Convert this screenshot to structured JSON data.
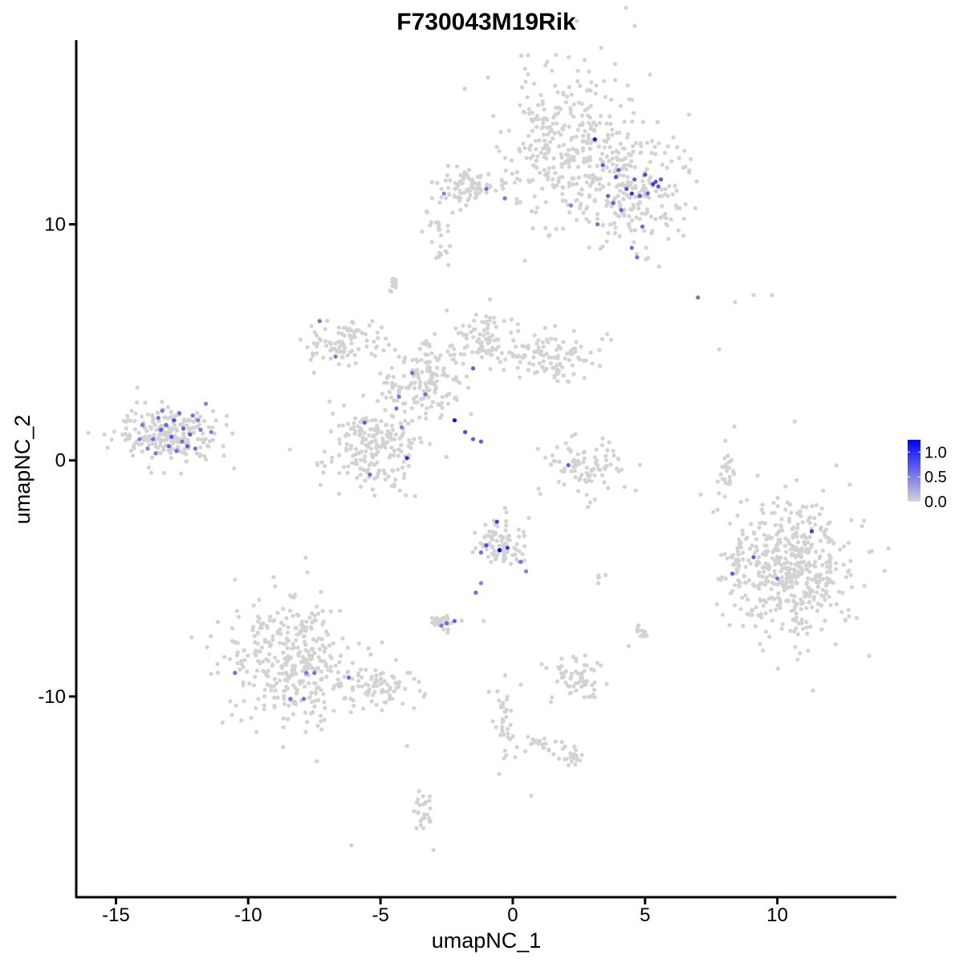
{
  "chart_data": {
    "type": "scatter",
    "title": "F730043M19Rik",
    "xlabel": "umapNC_1",
    "ylabel": "umapNC_2",
    "xlim": [
      -16.5,
      14.5
    ],
    "ylim": [
      -18.5,
      17.8
    ],
    "x_ticks": [
      -15,
      -10,
      -5,
      0,
      5,
      10
    ],
    "x_tick_labels": [
      "-15",
      "-10",
      "-5",
      "0",
      "5",
      "10"
    ],
    "y_ticks": [
      -10,
      0,
      10
    ],
    "y_tick_labels": [
      "-10",
      "0",
      "10"
    ],
    "grid": false,
    "legend_placement": "right",
    "colors": {
      "low": "#d3d3d3",
      "high": "#0000ff"
    },
    "color_scale": {
      "min": 0.0,
      "max": 1.25,
      "tick_values": [
        0.0,
        0.5,
        1.0
      ],
      "tick_labels": [
        "0.0",
        "0.5",
        "1.0"
      ]
    },
    "clusters": [
      {
        "name": "c1",
        "cx": 2.0,
        "cy": 13.3,
        "sx": 1.1,
        "sy": 1.7,
        "n": 320,
        "seed": 11
      },
      {
        "name": "c2",
        "cx": 4.6,
        "cy": 11.5,
        "sx": 1.0,
        "sy": 1.2,
        "n": 220,
        "seed": 12
      },
      {
        "name": "c3",
        "cx": -1.9,
        "cy": 11.6,
        "sx": 0.8,
        "sy": 0.4,
        "n": 90,
        "seed": 13
      },
      {
        "name": "c4",
        "cx": -13.0,
        "cy": 1.1,
        "sx": 1.0,
        "sy": 0.6,
        "n": 230,
        "seed": 14
      },
      {
        "name": "c5",
        "cx": -5.3,
        "cy": 0.6,
        "sx": 0.9,
        "sy": 0.9,
        "n": 200,
        "seed": 15
      },
      {
        "name": "c6",
        "cx": -6.3,
        "cy": 5.0,
        "sx": 0.8,
        "sy": 0.5,
        "n": 90,
        "seed": 16
      },
      {
        "name": "c7",
        "cx": -3.4,
        "cy": 3.3,
        "sx": 0.8,
        "sy": 1.0,
        "n": 160,
        "seed": 17
      },
      {
        "name": "c8",
        "cx": -1.1,
        "cy": 5.1,
        "sx": 0.6,
        "sy": 0.6,
        "n": 80,
        "seed": 18
      },
      {
        "name": "c9",
        "cx": 1.2,
        "cy": 4.4,
        "sx": 1.0,
        "sy": 0.5,
        "n": 110,
        "seed": 19
      },
      {
        "name": "c10",
        "cx": 2.8,
        "cy": -0.3,
        "sx": 0.8,
        "sy": 0.6,
        "n": 90,
        "seed": 20
      },
      {
        "name": "c11",
        "cx": 10.5,
        "cy": -4.6,
        "sx": 1.2,
        "sy": 1.5,
        "n": 500,
        "seed": 21
      },
      {
        "name": "c12",
        "cx": -8.4,
        "cy": -8.4,
        "sx": 1.2,
        "sy": 1.3,
        "n": 360,
        "seed": 22
      },
      {
        "name": "c13",
        "cx": -5.3,
        "cy": -9.6,
        "sx": 0.9,
        "sy": 0.5,
        "n": 80,
        "seed": 23
      },
      {
        "name": "c14",
        "cx": -0.5,
        "cy": -3.6,
        "sx": 0.5,
        "sy": 0.5,
        "n": 80,
        "seed": 24
      },
      {
        "name": "c15",
        "cx": 2.4,
        "cy": -9.3,
        "sx": 0.5,
        "sy": 0.5,
        "n": 60,
        "seed": 25
      },
      {
        "name": "c16",
        "cx": -2.6,
        "cy": -6.9,
        "sx": 0.3,
        "sy": 0.2,
        "n": 25,
        "seed": 26
      },
      {
        "name": "c17",
        "cx": -3.4,
        "cy": -14.9,
        "sx": 0.2,
        "sy": 0.5,
        "n": 25,
        "seed": 27
      },
      {
        "name": "c18",
        "cx": -4.5,
        "cy": 7.4,
        "sx": 0.15,
        "sy": 0.15,
        "n": 12,
        "seed": 28
      },
      {
        "name": "c19",
        "cx": -2.7,
        "cy": 8.8,
        "sx": 0.2,
        "sy": 0.3,
        "n": 10,
        "seed": 29
      },
      {
        "name": "c20",
        "cx": 8.1,
        "cy": -0.5,
        "sx": 0.2,
        "sy": 0.8,
        "n": 25,
        "seed": 30
      },
      {
        "name": "c21",
        "cx": 4.9,
        "cy": -7.4,
        "sx": 0.2,
        "sy": 0.2,
        "n": 15,
        "seed": 31
      },
      {
        "name": "c22",
        "cx": -0.3,
        "cy": -11.0,
        "sx": 0.2,
        "sy": 0.8,
        "n": 35,
        "seed": 32
      },
      {
        "name": "c23",
        "cx": 2.2,
        "cy": -12.6,
        "sx": 0.3,
        "sy": 0.2,
        "n": 20,
        "seed": 33
      },
      {
        "name": "c24",
        "cx": 1.1,
        "cy": -12.0,
        "sx": 0.6,
        "sy": 0.2,
        "n": 20,
        "seed": 34
      },
      {
        "name": "c25",
        "cx": 8.5,
        "cy": -4.3,
        "sx": 0.2,
        "sy": 0.5,
        "n": 20,
        "seed": 35
      },
      {
        "name": "c26",
        "cx": 3.2,
        "cy": -5.1,
        "sx": 0.15,
        "sy": 0.15,
        "n": 5,
        "seed": 36
      },
      {
        "name": "c27",
        "cx": -2.8,
        "cy": 10.0,
        "sx": 0.3,
        "sy": 0.3,
        "n": 15,
        "seed": 37
      }
    ],
    "isolated_points": [
      [
        -6.1,
        -16.3,
        0
      ],
      [
        -3.0,
        -16.5,
        0
      ],
      [
        0.7,
        -14.2,
        0
      ],
      [
        -4.0,
        -12.1,
        0
      ],
      [
        -1.1,
        -6.8,
        0
      ],
      [
        -0.9,
        -9.8,
        0
      ],
      [
        0.3,
        -9.5,
        0
      ],
      [
        9.1,
        7.0,
        0
      ],
      [
        9.8,
        7.0,
        0
      ],
      [
        8.4,
        6.7,
        0
      ],
      [
        7.8,
        4.7,
        0
      ]
    ],
    "expressing_points": [
      [
        -14.0,
        1.5,
        0.55
      ],
      [
        -13.6,
        0.9,
        0.6
      ],
      [
        -13.3,
        1.3,
        0.7
      ],
      [
        -13.0,
        0.6,
        0.65
      ],
      [
        -12.8,
        1.7,
        0.8
      ],
      [
        -12.5,
        0.8,
        0.6
      ],
      [
        -12.2,
        1.1,
        0.7
      ],
      [
        -11.8,
        1.3,
        0.55
      ],
      [
        -12.0,
        0.5,
        0.6
      ],
      [
        -13.8,
        0.5,
        0.5
      ],
      [
        -12.6,
        2.0,
        0.6
      ],
      [
        -11.6,
        2.4,
        0.5
      ],
      [
        -12.9,
        1.0,
        0.75
      ],
      [
        -13.4,
        1.8,
        0.6
      ],
      [
        -12.3,
        0.6,
        0.7
      ],
      [
        -11.9,
        1.7,
        0.5
      ],
      [
        -13.1,
        1.5,
        0.65
      ],
      [
        -12.7,
        0.4,
        0.6
      ],
      [
        -14.1,
        0.9,
        0.5
      ],
      [
        -13.5,
        0.3,
        0.55
      ],
      [
        -12.1,
        1.9,
        0.6
      ],
      [
        -12.45,
        1.35,
        0.7
      ],
      [
        -13.25,
        2.1,
        0.55
      ],
      [
        -11.4,
        1.2,
        0.5
      ],
      [
        3.4,
        12.5,
        0.7
      ],
      [
        3.9,
        12.0,
        0.8
      ],
      [
        4.3,
        11.5,
        0.75
      ],
      [
        4.6,
        11.9,
        0.7
      ],
      [
        5.0,
        12.1,
        0.85
      ],
      [
        5.3,
        11.7,
        0.9
      ],
      [
        5.5,
        11.6,
        0.75
      ],
      [
        4.8,
        11.2,
        0.7
      ],
      [
        4.1,
        10.6,
        0.65
      ],
      [
        3.6,
        11.2,
        0.7
      ],
      [
        3.1,
        13.6,
        1.1
      ],
      [
        4.5,
        11.3,
        0.95
      ],
      [
        5.1,
        11.3,
        0.7
      ],
      [
        4.9,
        9.9,
        0.6
      ],
      [
        3.2,
        10.0,
        0.55
      ],
      [
        4.5,
        9.0,
        0.6
      ],
      [
        5.4,
        11.8,
        0.8
      ],
      [
        4.0,
        12.3,
        0.7
      ],
      [
        3.8,
        10.9,
        0.65
      ],
      [
        4.7,
        8.6,
        0.6
      ],
      [
        5.6,
        11.9,
        0.7
      ],
      [
        2.2,
        10.8,
        0.5
      ],
      [
        -2.6,
        11.3,
        0.5
      ],
      [
        -1.0,
        11.5,
        0.6
      ],
      [
        -0.3,
        11.1,
        0.55
      ],
      [
        -2.2,
        1.7,
        1.2
      ],
      [
        -1.8,
        1.2,
        0.8
      ],
      [
        -1.5,
        0.9,
        0.7
      ],
      [
        -1.2,
        0.8,
        0.7
      ],
      [
        -5.6,
        1.6,
        0.7
      ],
      [
        -4.4,
        2.2,
        0.6
      ],
      [
        -4.3,
        2.7,
        0.55
      ],
      [
        -4.0,
        0.1,
        1.0
      ],
      [
        -5.4,
        -0.6,
        0.6
      ],
      [
        -4.2,
        1.4,
        0.5
      ],
      [
        -3.3,
        2.8,
        0.6
      ],
      [
        -7.3,
        5.9,
        0.6
      ],
      [
        -6.7,
        4.4,
        0.55
      ],
      [
        -3.8,
        3.7,
        0.6
      ],
      [
        -1.5,
        3.9,
        0.7
      ],
      [
        -0.6,
        -2.6,
        0.9
      ],
      [
        -0.5,
        -3.8,
        1.25
      ],
      [
        -0.2,
        -3.7,
        0.9
      ],
      [
        -1.0,
        -3.6,
        0.8
      ],
      [
        -1.2,
        -3.9,
        0.6
      ],
      [
        -1.4,
        -5.6,
        0.6
      ],
      [
        -2.2,
        -6.8,
        0.7
      ],
      [
        -2.5,
        -6.9,
        0.6
      ],
      [
        -2.7,
        -7.0,
        0.55
      ],
      [
        -1.2,
        -5.2,
        0.5
      ],
      [
        0.3,
        -4.3,
        0.6
      ],
      [
        0.5,
        -4.7,
        0.5
      ],
      [
        2.1,
        -0.2,
        0.7
      ],
      [
        7.0,
        6.9,
        0.6
      ],
      [
        8.3,
        -4.8,
        0.7
      ],
      [
        9.1,
        -4.1,
        0.7
      ],
      [
        11.3,
        -3.0,
        0.9
      ],
      [
        10.0,
        -5.0,
        0.6
      ],
      [
        -7.9,
        -10.1,
        0.6
      ],
      [
        -8.4,
        -10.1,
        0.55
      ],
      [
        -10.5,
        -9.0,
        0.6
      ],
      [
        -7.5,
        -9.0,
        0.6
      ],
      [
        -6.2,
        -9.2,
        0.6
      ],
      [
        -7.8,
        -9.0,
        0.55
      ]
    ]
  }
}
